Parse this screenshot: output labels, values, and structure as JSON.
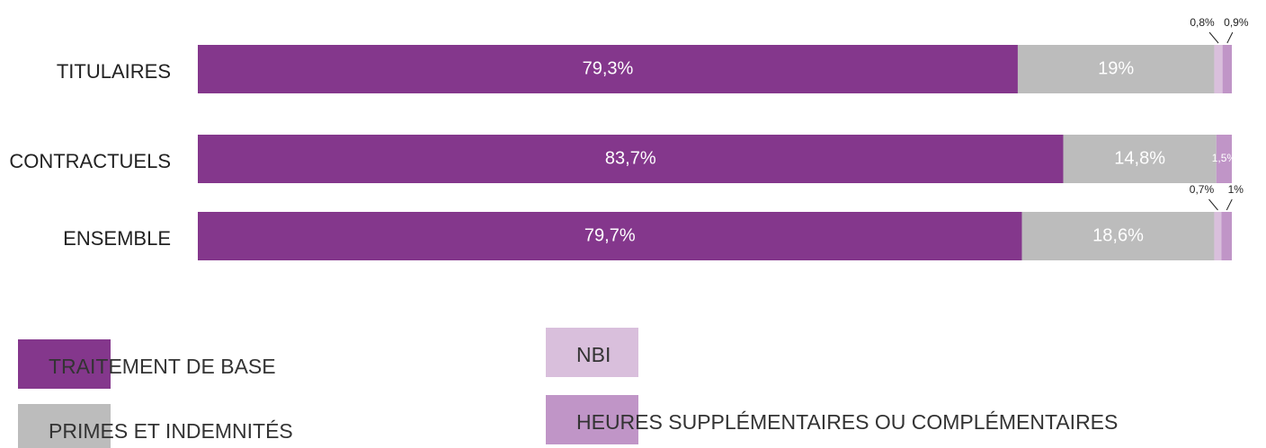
{
  "chart_data": {
    "type": "stacked-bar-horizontal",
    "categories": [
      "TITULAIRES",
      "CONTRACTUELS",
      "ENSEMBLE"
    ],
    "xlim": [
      0,
      100
    ],
    "series": [
      {
        "name": "TRAITEMENT DE BASE",
        "color": "#84378c",
        "values": [
          79.3,
          83.7,
          79.7
        ],
        "value_labels": [
          "79,3%",
          "83,7%",
          "79,7%"
        ]
      },
      {
        "name": "PRIMES ET INDEMNITÉS",
        "color": "#bcbcbc",
        "values": [
          19,
          14.8,
          18.6
        ],
        "value_labels": [
          "19%",
          "14,8%",
          "18,6%"
        ]
      },
      {
        "name": "NBI",
        "color": "#d9bfdc",
        "values": [
          0.8,
          null,
          0.7
        ],
        "value_labels": [
          "0,8%",
          null,
          "0,7%"
        ]
      },
      {
        "name": "HEURES SUPPLÉMENTAIRES OU COMPLÉMENTAIRES",
        "color": "#c095c7",
        "values": [
          0.9,
          1.5,
          1
        ],
        "value_labels": [
          "0,9%",
          "1,5%",
          "1%"
        ]
      }
    ]
  }
}
